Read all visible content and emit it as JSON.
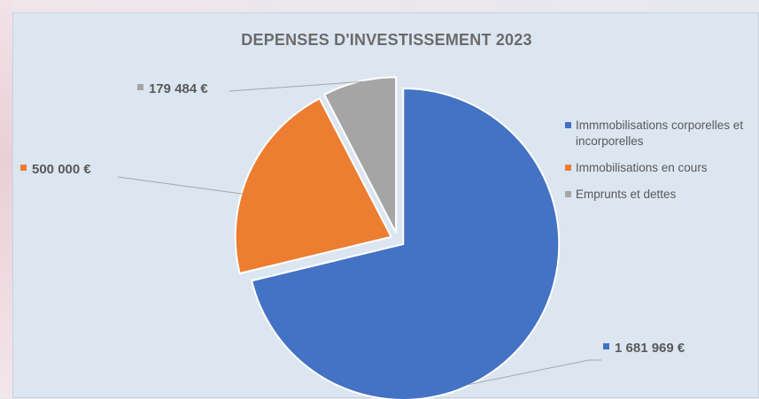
{
  "chart_data": {
    "type": "pie",
    "title": "DEPENSES D'INVESTISSEMENT 2023",
    "categories": [
      "Immmobilisations corporelles et incorporelles",
      "Immobilisations en cours",
      "Emprunts et dettes"
    ],
    "values": [
      1681969,
      500000,
      179484
    ],
    "data_labels": [
      "1 681 969 €",
      "500 000 €",
      "179 484 €"
    ],
    "colors": [
      "#4472c4",
      "#ed7d31",
      "#a5a5a5"
    ],
    "legend_position": "right",
    "exploded": true
  }
}
